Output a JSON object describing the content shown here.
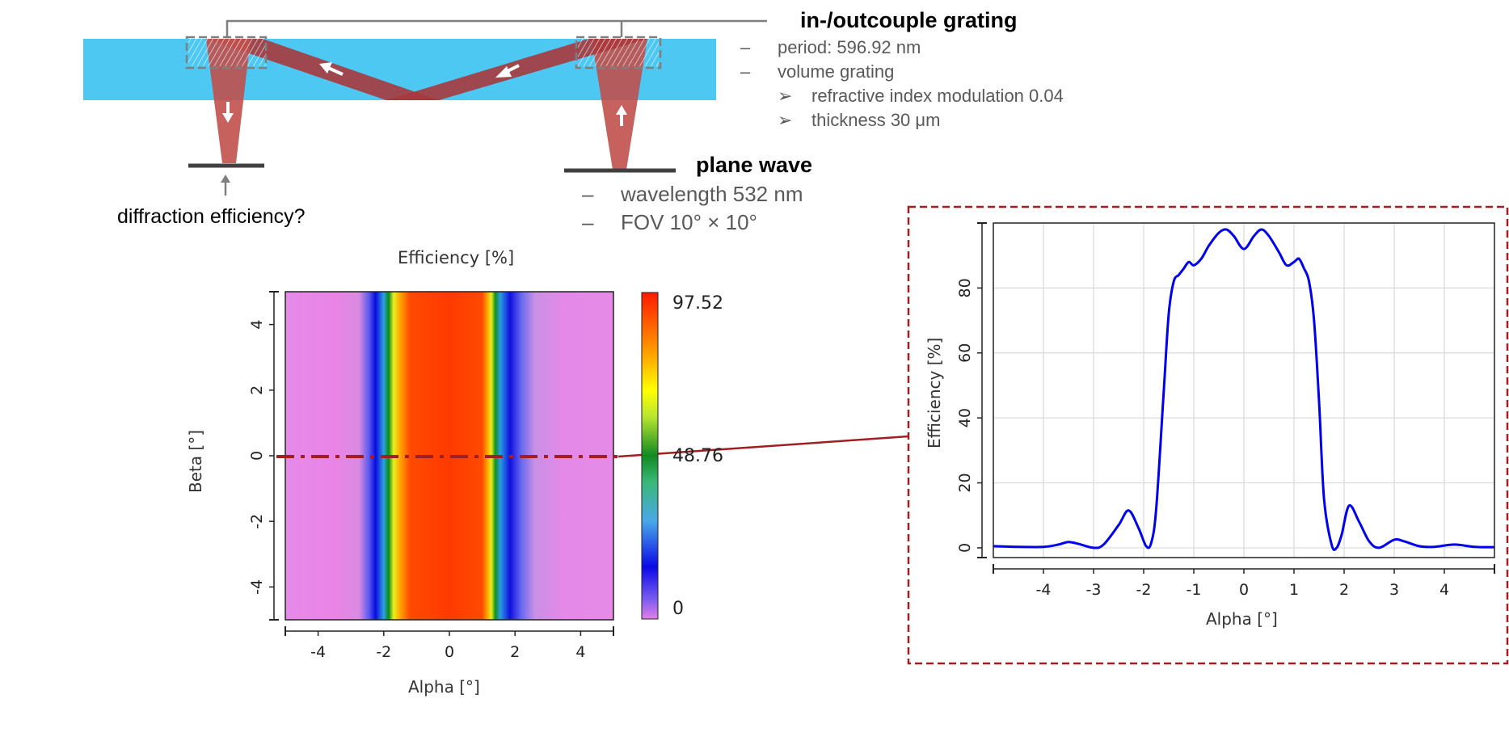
{
  "diagram": {
    "grating_heading": "in-/outcouple grating",
    "grating_specs": [
      {
        "marker": "–",
        "text": "period: 596.92 nm"
      },
      {
        "marker": "–",
        "text": "volume grating"
      },
      {
        "marker": "➢",
        "text": "refractive index modulation 0.04"
      },
      {
        "marker": "➢",
        "text": "thickness 30 μm"
      }
    ],
    "plane_wave_heading": "plane wave",
    "plane_wave_specs": [
      {
        "marker": "–",
        "text": "wavelength 532 nm"
      },
      {
        "marker": "–",
        "text": "FOV 10° × 10°"
      }
    ],
    "detector_question": "diffraction efficiency?",
    "colors": {
      "waveguide": "#4dc8f2",
      "beam": "#c0504d",
      "section_marker": "#a11e23",
      "grating_box": "#7f7f7f"
    },
    "icons": [
      "arrow-up-icon",
      "arrow-down-icon",
      "arrow-left-icon"
    ]
  },
  "chart_data": [
    {
      "type": "heatmap",
      "title": "Efficiency [%]",
      "xlabel": "Alpha [°]",
      "ylabel": "Beta [°]",
      "xlim": [
        -5,
        5
      ],
      "ylim": [
        -5,
        5
      ],
      "x_ticks": [
        -4,
        -2,
        0,
        2,
        4
      ],
      "y_ticks": [
        -4,
        -2,
        0,
        2,
        4
      ],
      "colorbar": {
        "min": 0,
        "mid": 48.76,
        "max": 97.52,
        "labels": [
          "97.52",
          "48.76",
          "0"
        ]
      },
      "section_line": {
        "beta": 0
      },
      "band": {
        "alpha_min": -1.8,
        "alpha_max": 1.4
      },
      "grid": false
    },
    {
      "type": "line",
      "title": "",
      "xlabel": "Alpha [°]",
      "ylabel": "Efficiency [%]",
      "xlim": [
        -5,
        5
      ],
      "ylim": [
        -3,
        100
      ],
      "x_ticks": [
        -4,
        -3,
        -2,
        -1,
        0,
        1,
        2,
        3,
        4
      ],
      "y_ticks": [
        0,
        20,
        40,
        60,
        80
      ],
      "grid": true,
      "series": [
        {
          "color": "#0000ee",
          "x": [
            -5,
            -4.5,
            -4,
            -3.7,
            -3.5,
            -3.3,
            -3.0,
            -2.8,
            -2.5,
            -2.3,
            -2.1,
            -1.95,
            -1.85,
            -1.75,
            -1.6,
            -1.5,
            -1.4,
            -1.3,
            -1.2,
            -1.1,
            -1.0,
            -0.85,
            -0.7,
            -0.5,
            -0.35,
            -0.2,
            0,
            0.2,
            0.35,
            0.5,
            0.7,
            0.85,
            1.0,
            1.1,
            1.2,
            1.3,
            1.4,
            1.5,
            1.6,
            1.75,
            1.85,
            1.95,
            2.1,
            2.3,
            2.5,
            2.7,
            3.0,
            3.2,
            3.5,
            3.8,
            4.2,
            4.6,
            5
          ],
          "y": [
            0.5,
            0.3,
            0.3,
            1.0,
            1.8,
            1.2,
            0.0,
            1.0,
            7.0,
            11.5,
            6.0,
            0.5,
            1.5,
            12.0,
            48.0,
            72.0,
            82.0,
            84.0,
            86.0,
            88.0,
            87.0,
            89.0,
            93.0,
            97.0,
            98.0,
            96.0,
            92.0,
            96.0,
            98.0,
            96.0,
            91.0,
            87.0,
            88.0,
            89.0,
            86.0,
            82.0,
            70.0,
            45.0,
            15.0,
            1.0,
            0.0,
            4.0,
            13.0,
            8.0,
            2.0,
            0.0,
            2.5,
            2.0,
            0.5,
            0.3,
            1.0,
            0.3,
            0.2
          ]
        }
      ]
    }
  ]
}
